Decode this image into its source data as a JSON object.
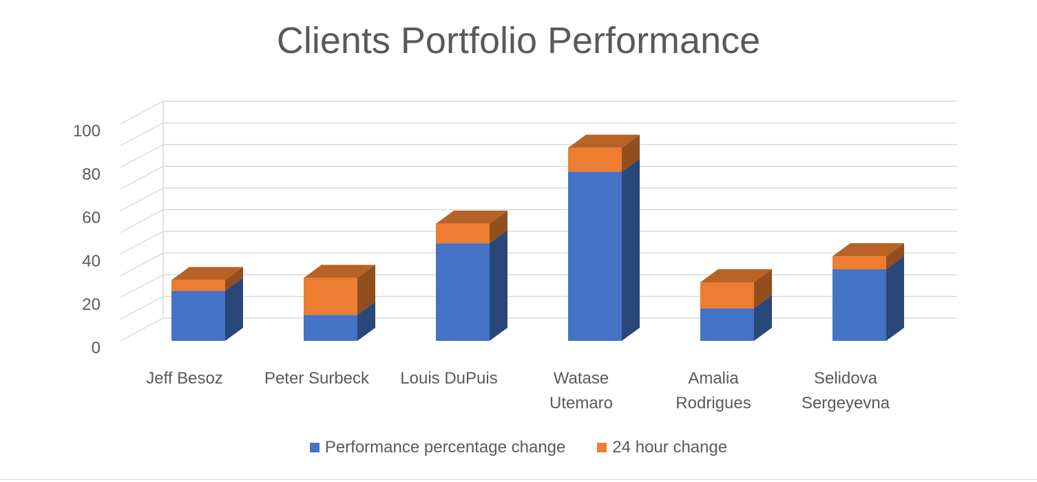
{
  "chart_data": {
    "type": "bar",
    "stacked": true,
    "three_d": true,
    "title": "Clients Portfolio Performance",
    "categories": [
      [
        "Jeff Besoz"
      ],
      [
        "Peter Surbeck"
      ],
      [
        "Louis DuPuis"
      ],
      [
        "Watase",
        "Utemaro"
      ],
      [
        "Amalia",
        "Rodrigues"
      ],
      [
        "Selidova",
        "Sergeyevna"
      ]
    ],
    "series": [
      {
        "name": "Performance percentage change",
        "color": "#4472c4",
        "values": [
          23,
          12,
          45,
          78,
          15,
          33
        ]
      },
      {
        "name": "24 hour change",
        "color": "#ed7d31",
        "values": [
          5,
          17,
          9,
          11,
          12,
          6
        ]
      }
    ],
    "yticks": [
      0,
      20,
      40,
      60,
      80,
      100
    ],
    "ylim": [
      0,
      100
    ],
    "grid": true,
    "legend_position": "bottom"
  }
}
